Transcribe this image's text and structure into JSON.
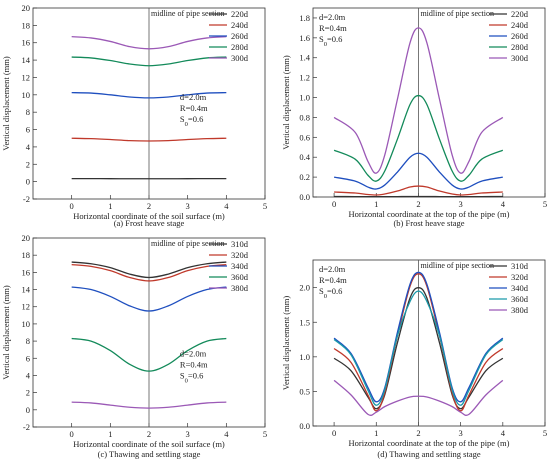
{
  "chart_data": [
    {
      "type": "line",
      "caption": "(a) Frost heave stage",
      "xlabel": "Horizontal coordinate of the soil surface (m)",
      "ylabel": "Vertical displacement (mm)",
      "xlim": [
        -1,
        5
      ],
      "ylim": [
        -2,
        20
      ],
      "xticks": [
        0,
        1,
        2,
        3,
        4,
        5
      ],
      "yticks": [
        -2,
        0,
        2,
        4,
        6,
        8,
        10,
        12,
        14,
        16,
        18,
        20
      ],
      "midline_x": 2,
      "midline_label": "midline of pipe section",
      "annotation": [
        "d=2.0m",
        "R=0.4m",
        "S0=0.6"
      ],
      "legend_position": "top-right",
      "x": [
        0,
        0.5,
        1,
        1.5,
        2,
        2.5,
        3,
        3.5,
        4
      ],
      "series": [
        {
          "name": "220d",
          "color": "#333333",
          "values": [
            0.35,
            0.35,
            0.34,
            0.33,
            0.33,
            0.33,
            0.34,
            0.35,
            0.35
          ]
        },
        {
          "name": "240d",
          "color": "#c0392b",
          "values": [
            5.0,
            4.95,
            4.85,
            4.72,
            4.68,
            4.72,
            4.85,
            4.95,
            5.0
          ]
        },
        {
          "name": "260d",
          "color": "#1f4fbf",
          "values": [
            10.25,
            10.2,
            10.0,
            9.75,
            9.65,
            9.75,
            10.0,
            10.2,
            10.25
          ]
        },
        {
          "name": "280d",
          "color": "#138a5a",
          "values": [
            14.35,
            14.25,
            13.95,
            13.55,
            13.35,
            13.55,
            13.95,
            14.25,
            14.35
          ]
        },
        {
          "name": "300d",
          "color": "#9b59b6",
          "values": [
            16.7,
            16.55,
            16.15,
            15.55,
            15.3,
            15.55,
            16.15,
            16.55,
            16.7
          ]
        }
      ]
    },
    {
      "type": "line",
      "caption": "(b) Frost heave stage",
      "xlabel": "Horizontal coordinate at the top of the pipe (m)",
      "ylabel": "Vertical displacement (mm)",
      "xlim": [
        -0.5,
        5
      ],
      "ylim": [
        0.0,
        1.9
      ],
      "xticks": [
        0,
        1,
        2,
        3,
        4,
        5
      ],
      "yticks": [
        0.0,
        0.2,
        0.4,
        0.6,
        0.8,
        1.0,
        1.2,
        1.4,
        1.6,
        1.8
      ],
      "midline_x": 2,
      "midline_label": "midline of pipe section",
      "annotation": [
        "d=2.0m",
        "R=0.4m",
        "S0=0.6"
      ],
      "legend_position": "top-right",
      "x": [
        0,
        0.5,
        0.8,
        1,
        1.2,
        1.5,
        1.8,
        2,
        2.2,
        2.5,
        2.8,
        3,
        3.2,
        3.5,
        4
      ],
      "series": [
        {
          "name": "220d",
          "color": "#333333",
          "values": [
            0.005,
            0.004,
            0.003,
            0.003,
            0.003,
            0.004,
            0.005,
            0.005,
            0.005,
            0.004,
            0.003,
            0.003,
            0.003,
            0.004,
            0.005
          ]
        },
        {
          "name": "240d",
          "color": "#c0392b",
          "values": [
            0.05,
            0.04,
            0.025,
            0.02,
            0.03,
            0.06,
            0.1,
            0.11,
            0.1,
            0.06,
            0.03,
            0.02,
            0.025,
            0.04,
            0.05
          ]
        },
        {
          "name": "260d",
          "color": "#1f4fbf",
          "values": [
            0.2,
            0.16,
            0.1,
            0.08,
            0.12,
            0.25,
            0.4,
            0.44,
            0.4,
            0.25,
            0.12,
            0.08,
            0.1,
            0.16,
            0.2
          ]
        },
        {
          "name": "280d",
          "color": "#138a5a",
          "values": [
            0.47,
            0.38,
            0.22,
            0.16,
            0.26,
            0.58,
            0.93,
            1.02,
            0.93,
            0.58,
            0.26,
            0.16,
            0.22,
            0.38,
            0.47
          ]
        },
        {
          "name": "300d",
          "color": "#9b59b6",
          "values": [
            0.8,
            0.65,
            0.36,
            0.24,
            0.42,
            0.98,
            1.55,
            1.7,
            1.55,
            0.98,
            0.42,
            0.24,
            0.36,
            0.65,
            0.8
          ]
        }
      ]
    },
    {
      "type": "line",
      "caption": "(c) Thawing and settling stage",
      "xlabel": "Horizontal coordinate of the soil surface (m)",
      "ylabel": "Vertical displacement (mm)",
      "xlim": [
        -1,
        5
      ],
      "ylim": [
        -2,
        20
      ],
      "xticks": [
        0,
        1,
        2,
        3,
        4,
        5
      ],
      "yticks": [
        -2,
        0,
        2,
        4,
        6,
        8,
        10,
        12,
        14,
        16,
        18,
        20
      ],
      "midline_x": 2,
      "midline_label": "midline of pipe section",
      "annotation": [
        "d=2.0m",
        "R=0.4m",
        "S0=0.6"
      ],
      "legend_position": "top-right",
      "x": [
        0,
        0.5,
        1,
        1.5,
        2,
        2.5,
        3,
        3.5,
        4
      ],
      "series": [
        {
          "name": "310d",
          "color": "#333333",
          "values": [
            17.2,
            17.0,
            16.55,
            15.8,
            15.4,
            15.8,
            16.55,
            17.0,
            17.2
          ]
        },
        {
          "name": "320d",
          "color": "#c0392b",
          "values": [
            16.9,
            16.7,
            16.2,
            15.4,
            15.0,
            15.4,
            16.2,
            16.7,
            16.9
          ]
        },
        {
          "name": "340d",
          "color": "#1f4fbf",
          "values": [
            14.3,
            14.0,
            13.2,
            12.1,
            11.5,
            12.1,
            13.2,
            14.0,
            14.3
          ]
        },
        {
          "name": "360d",
          "color": "#138a5a",
          "values": [
            8.3,
            8.0,
            6.9,
            5.3,
            4.5,
            5.3,
            6.9,
            8.0,
            8.3
          ]
        },
        {
          "name": "380d",
          "color": "#9b59b6",
          "values": [
            0.9,
            0.8,
            0.55,
            0.3,
            0.2,
            0.3,
            0.55,
            0.8,
            0.9
          ]
        }
      ]
    },
    {
      "type": "line",
      "caption": "(d) Thawing and settling stage",
      "xlabel": "Horizontal coordinate at the top of the pipe (m)",
      "ylabel": "Vertical displacement (mm)",
      "xlim": [
        -0.5,
        5
      ],
      "ylim": [
        0.0,
        2.4
      ],
      "xticks": [
        0,
        1,
        2,
        3,
        4,
        5
      ],
      "yticks": [
        0.0,
        0.5,
        1.0,
        1.5,
        2.0
      ],
      "midline_x": 2,
      "midline_label": "midline of pipe section",
      "annotation": [
        "d=2.0m",
        "R=0.4m",
        "S0=0.6"
      ],
      "legend_position": "top-right",
      "x": [
        0,
        0.4,
        0.8,
        1,
        1.2,
        1.5,
        1.8,
        2,
        2.2,
        2.5,
        2.8,
        3,
        3.2,
        3.6,
        4
      ],
      "series": [
        {
          "name": "310d",
          "color": "#333333",
          "values": [
            0.98,
            0.8,
            0.42,
            0.25,
            0.45,
            1.2,
            1.85,
            2.0,
            1.85,
            1.2,
            0.45,
            0.25,
            0.42,
            0.8,
            0.98
          ]
        },
        {
          "name": "320d",
          "color": "#c0392b",
          "values": [
            1.12,
            0.92,
            0.45,
            0.22,
            0.48,
            1.3,
            2.02,
            2.2,
            2.02,
            1.3,
            0.48,
            0.22,
            0.45,
            0.92,
            1.12
          ]
        },
        {
          "name": "340d",
          "color": "#1f4fbf",
          "values": [
            1.27,
            1.05,
            0.56,
            0.35,
            0.55,
            1.35,
            2.05,
            2.22,
            2.05,
            1.35,
            0.55,
            0.35,
            0.56,
            1.05,
            1.27
          ]
        },
        {
          "name": "360d",
          "color": "#1a9aaa",
          "values": [
            1.25,
            1.03,
            0.52,
            0.3,
            0.52,
            1.3,
            1.8,
            1.95,
            1.8,
            1.3,
            0.52,
            0.3,
            0.52,
            1.03,
            1.25
          ]
        },
        {
          "name": "380d",
          "color": "#9b59b6",
          "values": [
            0.66,
            0.45,
            0.17,
            0.2,
            0.28,
            0.36,
            0.42,
            0.43,
            0.42,
            0.36,
            0.28,
            0.2,
            0.17,
            0.45,
            0.66
          ]
        }
      ]
    }
  ]
}
